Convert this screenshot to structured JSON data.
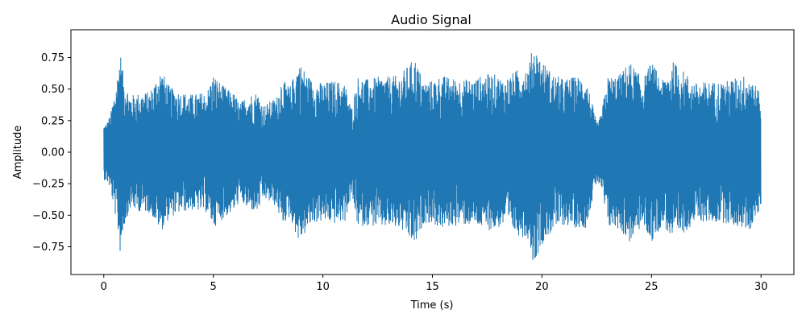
{
  "chart_data": {
    "type": "line",
    "title": "Audio Signal",
    "xlabel": "Time (s)",
    "ylabel": "Amplitude",
    "xlim": [
      -1.5,
      31.5
    ],
    "ylim": [
      -0.97,
      0.97
    ],
    "grid": false,
    "legend": "none",
    "line_color": "#1f77b4",
    "x_ticks": [
      0,
      5,
      10,
      15,
      20,
      25,
      30
    ],
    "x_tick_labels": [
      "0",
      "5",
      "10",
      "15",
      "20",
      "25",
      "30"
    ],
    "y_ticks": [
      -0.75,
      -0.5,
      -0.25,
      0.0,
      0.25,
      0.5,
      0.75
    ],
    "y_tick_labels": [
      "−0.75",
      "−0.50",
      "−0.25",
      "0.00",
      "0.25",
      "0.50",
      "0.75"
    ],
    "series": [
      {
        "x_start": 0,
        "x_end": 30,
        "envelope": {
          "t": [
            0.0,
            0.15,
            0.3,
            0.6,
            0.75,
            0.9,
            1.2,
            1.6,
            2.1,
            2.6,
            3.0,
            3.5,
            4.0,
            4.7,
            5.0,
            5.5,
            6.0,
            6.2,
            6.5,
            7.0,
            7.3,
            7.9,
            8.1,
            8.5,
            8.9,
            9.5,
            10.0,
            10.5,
            11.0,
            11.3,
            11.6,
            12.0,
            12.6,
            13.0,
            13.5,
            14.2,
            14.6,
            15.0,
            15.4,
            15.9,
            16.4,
            16.9,
            17.4,
            17.8,
            18.3,
            18.9,
            19.4,
            19.6,
            20.0,
            20.5,
            21.0,
            21.5,
            22.0,
            22.5,
            22.7,
            23.0,
            23.5,
            24.0,
            24.6,
            25.0,
            25.5,
            26.0,
            26.6,
            27.0,
            27.6,
            28.3,
            29.0,
            29.5,
            29.9,
            30.0
          ],
          "top": [
            0.22,
            0.24,
            0.3,
            0.58,
            0.81,
            0.6,
            0.45,
            0.47,
            0.48,
            0.66,
            0.52,
            0.48,
            0.46,
            0.48,
            0.62,
            0.52,
            0.46,
            0.38,
            0.45,
            0.48,
            0.37,
            0.44,
            0.58,
            0.52,
            0.72,
            0.57,
            0.55,
            0.57,
            0.55,
            0.35,
            0.6,
            0.58,
            0.6,
            0.6,
            0.61,
            0.75,
            0.56,
            0.57,
            0.61,
            0.59,
            0.58,
            0.58,
            0.62,
            0.62,
            0.58,
            0.66,
            0.69,
            0.86,
            0.73,
            0.62,
            0.58,
            0.6,
            0.6,
            0.23,
            0.3,
            0.6,
            0.61,
            0.72,
            0.58,
            0.72,
            0.57,
            0.72,
            0.62,
            0.55,
            0.56,
            0.56,
            0.6,
            0.62,
            0.48,
            0.42
          ],
          "bottom": [
            -0.22,
            -0.24,
            -0.3,
            -0.58,
            -0.82,
            -0.6,
            -0.45,
            -0.47,
            -0.48,
            -0.63,
            -0.52,
            -0.48,
            -0.46,
            -0.48,
            -0.6,
            -0.52,
            -0.46,
            -0.38,
            -0.45,
            -0.48,
            -0.37,
            -0.44,
            -0.58,
            -0.52,
            -0.72,
            -0.57,
            -0.55,
            -0.57,
            -0.55,
            -0.35,
            -0.6,
            -0.58,
            -0.6,
            -0.6,
            -0.61,
            -0.75,
            -0.56,
            -0.57,
            -0.61,
            -0.59,
            -0.58,
            -0.58,
            -0.62,
            -0.62,
            -0.58,
            -0.66,
            -0.69,
            -0.89,
            -0.73,
            -0.62,
            -0.58,
            -0.6,
            -0.6,
            -0.23,
            -0.3,
            -0.6,
            -0.61,
            -0.72,
            -0.58,
            -0.72,
            -0.57,
            -0.72,
            -0.62,
            -0.55,
            -0.56,
            -0.56,
            -0.6,
            -0.62,
            -0.48,
            -0.42
          ]
        }
      }
    ]
  }
}
